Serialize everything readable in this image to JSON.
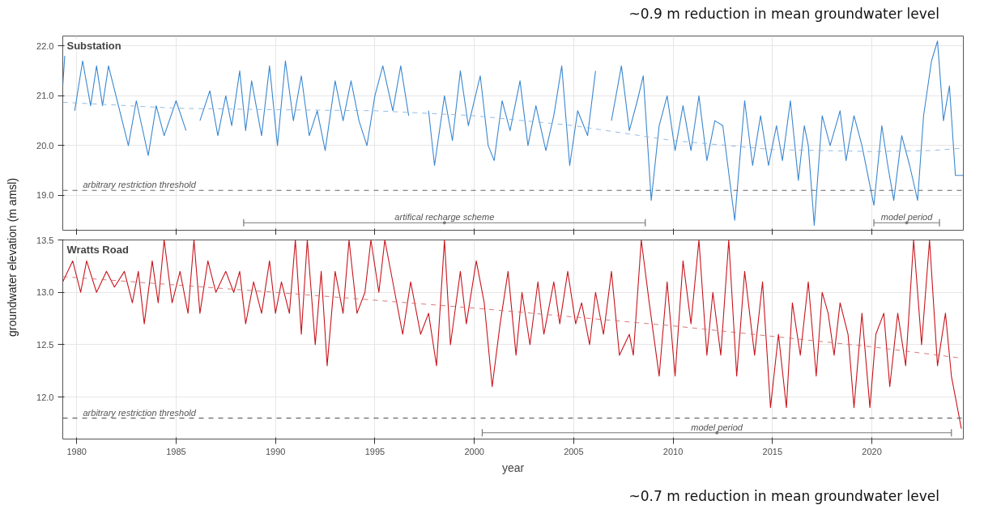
{
  "chart_data": [
    {
      "type": "line",
      "title": "Substation",
      "ylabel": "groundwater elevation (m amsl)",
      "annotations": [
        "~0.9 m reduction in mean groundwater level"
      ],
      "series": [
        {
          "color": "#3a87d0",
          "x": [
            1979.3,
            1979.4,
            1979.5,
            1979.9,
            1980.3,
            1980.7,
            1981.0,
            1981.3,
            1981.6,
            1982.1,
            1982.6,
            1983.0,
            1983.6,
            1984.0,
            1984.4,
            1985.0,
            1985.5,
            1985.8,
            1986.2,
            1986.7,
            1987.1,
            1987.5,
            1987.8,
            1988.2,
            1988.5,
            1988.8,
            1989.3,
            1989.7,
            1990.1,
            1990.5,
            1990.9,
            1991.3,
            1991.7,
            1992.1,
            1992.5,
            1993.0,
            1993.4,
            1993.8,
            1994.2,
            1994.6,
            1995.0,
            1995.4,
            1995.9,
            1996.3,
            1996.7,
            1997.3,
            1997.7,
            1998.0,
            1998.5,
            1998.9,
            1999.3,
            1999.7,
            2000.3,
            2000.7,
            2001.0,
            2001.4,
            2001.8,
            2002.3,
            2002.7,
            2003.1,
            2003.6,
            2004.0,
            2004.4,
            2004.8,
            2005.2,
            2005.7,
            2006.1,
            2006.5,
            2006.9,
            2007.4,
            2007.8,
            2008.2,
            2008.5,
            2008.9,
            2009.3,
            2009.7,
            2010.1,
            2010.5,
            2010.9,
            2011.3,
            2011.7,
            2012.1,
            2012.5,
            2013.1,
            2013.6,
            2014.0,
            2014.4,
            2014.8,
            2015.2,
            2015.5,
            2015.9,
            2016.3,
            2016.6,
            2016.8,
            2017.1,
            2017.5,
            2017.9,
            2018.4,
            2018.7,
            2019.1,
            2019.5,
            2020.1,
            2020.5,
            2020.8,
            2021.1,
            2021.5,
            2021.9,
            2022.3,
            2022.6,
            2023.0,
            2023.3,
            2023.6,
            2023.9,
            2024.2,
            2024.6
          ],
          "values": [
            21.2,
            21.8,
            null,
            20.7,
            21.7,
            20.8,
            21.6,
            20.8,
            21.6,
            20.8,
            20.0,
            20.9,
            19.8,
            20.8,
            20.2,
            20.9,
            20.3,
            null,
            20.5,
            21.1,
            20.2,
            21.0,
            20.4,
            21.5,
            20.3,
            21.3,
            20.2,
            21.6,
            20.0,
            21.7,
            20.5,
            21.4,
            20.2,
            20.7,
            19.9,
            21.3,
            20.5,
            21.3,
            20.5,
            20.0,
            21.0,
            21.6,
            20.7,
            21.6,
            20.6,
            null,
            20.7,
            19.6,
            21.0,
            20.1,
            21.5,
            20.4,
            21.4,
            20.0,
            19.7,
            20.9,
            20.3,
            21.3,
            20.0,
            20.8,
            19.9,
            20.6,
            21.6,
            19.6,
            20.7,
            20.2,
            21.5,
            null,
            20.5,
            21.6,
            20.3,
            20.9,
            21.4,
            18.9,
            20.4,
            21.0,
            19.9,
            20.8,
            19.9,
            21.0,
            19.7,
            20.5,
            20.4,
            18.5,
            20.9,
            19.6,
            20.6,
            19.6,
            20.4,
            19.7,
            20.9,
            19.3,
            20.4,
            20.0,
            18.4,
            20.6,
            20.0,
            20.7,
            19.7,
            20.6,
            20.0,
            18.8,
            20.4,
            19.6,
            18.9,
            20.2,
            19.6,
            18.9,
            20.6,
            21.7,
            22.1,
            20.5,
            21.2,
            19.4,
            19.4
          ]
        },
        {
          "color": "#8ab4df",
          "line_style": "dashed",
          "x": [
            1979.3,
            1985,
            1990,
            1995,
            2000,
            2005,
            2010,
            2015,
            2020,
            2023,
            2024.6
          ],
          "values": [
            20.87,
            20.75,
            20.72,
            20.7,
            20.6,
            20.4,
            20.1,
            19.92,
            19.88,
            19.9,
            19.95
          ]
        },
        {
          "type": "scatter",
          "name": "artifical recharge scheme",
          "color": "#777777",
          "marker": "circle",
          "x": [
            1998.5
          ],
          "values": [
            18.45
          ],
          "xerrors": [
            [
              1988.4,
              2008.6
            ]
          ]
        },
        {
          "type": "scatter",
          "name": "model period",
          "color": "#777777",
          "marker": "circle",
          "x": [
            2021.75
          ],
          "values": [
            18.45
          ],
          "xerrors": [
            [
              2020.1,
              2023.4
            ]
          ]
        }
      ],
      "xlim": [
        1979.3,
        2024.6
      ],
      "ylim": [
        18.3,
        22.2
      ],
      "xticks": [
        1980,
        1985,
        1990,
        1995,
        2000,
        2005,
        2010,
        2015,
        2020
      ],
      "yticks": [
        {
          "value": 19,
          "label": "19.0"
        },
        {
          "value": 20,
          "label": "20.0"
        },
        {
          "value": 21,
          "label": "21.0"
        },
        {
          "value": 22,
          "label": "22.0"
        }
      ],
      "ref_lines": [
        {
          "axis": "y",
          "value": 19.1,
          "label": "arbitrary restriction threshold",
          "color": "#666666",
          "line_style": "dashed"
        }
      ],
      "grid": true,
      "tick_labels": "y"
    },
    {
      "type": "line",
      "title": "Wratts Road",
      "xlabel": "year",
      "annotations": [
        "~0.7 m reduction in mean groundwater level"
      ],
      "series": [
        {
          "color": "#c8141c",
          "x": [
            1979.3,
            1979.8,
            1980.2,
            1980.5,
            1981.0,
            1981.5,
            1981.9,
            1982.4,
            1982.8,
            1983.1,
            1983.4,
            1983.8,
            1984.1,
            1984.4,
            1984.8,
            1985.2,
            1985.6,
            1985.9,
            1986.2,
            1986.6,
            1987.0,
            1987.5,
            1987.9,
            1988.2,
            1988.5,
            1988.9,
            1989.3,
            1989.7,
            1990.0,
            1990.3,
            1990.7,
            1991.0,
            1991.3,
            1991.6,
            1992.0,
            1992.3,
            1992.6,
            1993.0,
            1993.4,
            1993.7,
            1994.1,
            1994.5,
            1994.8,
            1995.2,
            1995.5,
            1996.0,
            1996.4,
            1996.8,
            1997.3,
            1997.7,
            1998.1,
            1998.5,
            1998.8,
            1999.3,
            1999.6,
            2000.1,
            2000.5,
            2000.9,
            2001.3,
            2001.7,
            2002.1,
            2002.4,
            2002.8,
            2003.2,
            2003.5,
            2004.0,
            2004.3,
            2004.7,
            2005.1,
            2005.4,
            2005.8,
            2006.1,
            2006.5,
            2006.9,
            2007.3,
            2007.8,
            2008.0,
            2008.4,
            2008.8,
            2009.3,
            2009.7,
            2010.1,
            2010.5,
            2010.9,
            2011.3,
            2011.7,
            2012.0,
            2012.4,
            2012.8,
            2013.2,
            2013.6,
            2014.1,
            2014.5,
            2014.9,
            2015.3,
            2015.7,
            2016.0,
            2016.4,
            2016.8,
            2017.2,
            2017.5,
            2017.8,
            2018.1,
            2018.4,
            2018.8,
            2019.1,
            2019.5,
            2019.9,
            2020.2,
            2020.6,
            2020.9,
            2021.3,
            2021.7,
            2022.1,
            2022.5,
            2022.9,
            2023.3,
            2023.7,
            2024.0,
            2024.5
          ],
          "values": [
            13.1,
            13.3,
            13.0,
            13.3,
            13.0,
            13.2,
            13.05,
            13.2,
            12.9,
            13.2,
            12.7,
            13.3,
            12.9,
            13.5,
            12.9,
            13.2,
            12.8,
            13.5,
            12.8,
            13.3,
            13.0,
            13.2,
            13.0,
            13.2,
            12.7,
            13.1,
            12.8,
            13.3,
            12.8,
            13.1,
            12.8,
            13.5,
            12.6,
            13.5,
            12.5,
            13.2,
            12.3,
            13.2,
            12.8,
            13.5,
            12.8,
            13.0,
            13.5,
            13.0,
            13.5,
            13.0,
            12.6,
            13.1,
            12.6,
            12.8,
            12.3,
            13.5,
            12.5,
            13.2,
            12.7,
            13.3,
            12.9,
            12.1,
            12.7,
            13.2,
            12.4,
            13.0,
            12.5,
            13.1,
            12.6,
            13.1,
            12.7,
            13.2,
            12.7,
            12.9,
            12.5,
            13.0,
            12.6,
            13.2,
            12.4,
            12.6,
            12.4,
            13.5,
            12.9,
            12.2,
            13.1,
            12.2,
            13.3,
            12.7,
            13.5,
            12.4,
            13.0,
            12.4,
            13.5,
            12.2,
            13.2,
            12.4,
            13.1,
            11.9,
            12.6,
            11.9,
            12.9,
            12.4,
            13.1,
            12.2,
            13.0,
            12.8,
            12.4,
            12.9,
            12.6,
            11.9,
            12.8,
            11.9,
            12.6,
            12.8,
            12.1,
            12.8,
            12.3,
            13.5,
            12.5,
            13.5,
            12.3,
            12.8,
            12.2,
            11.7
          ]
        },
        {
          "color": "#d46a6a",
          "line_style": "dashed",
          "x": [
            1979.3,
            1990,
            2000,
            2010,
            2020,
            2024.6
          ],
          "values": [
            13.15,
            13.0,
            12.85,
            12.68,
            12.48,
            12.37
          ]
        },
        {
          "type": "scatter",
          "name": "model period",
          "color": "#777777",
          "marker": "circle",
          "x": [
            2012.2
          ],
          "values": [
            11.66
          ],
          "xerrors": [
            [
              2000.4,
              2024.0
            ]
          ]
        }
      ],
      "xlim": [
        1979.3,
        2024.6
      ],
      "ylim": [
        11.6,
        13.5
      ],
      "xticks": [
        1980,
        1985,
        1990,
        1995,
        2000,
        2005,
        2010,
        2015,
        2020
      ],
      "yticks": [
        {
          "value": 12,
          "label": "12.0"
        },
        12.5,
        {
          "value": 13,
          "label": "13.0"
        },
        13.5
      ],
      "ref_lines": [
        {
          "axis": "y",
          "value": 11.8,
          "label": "arbitrary restriction threshold",
          "color": "#666666",
          "line_style": "dashed"
        }
      ],
      "grid": true
    }
  ]
}
